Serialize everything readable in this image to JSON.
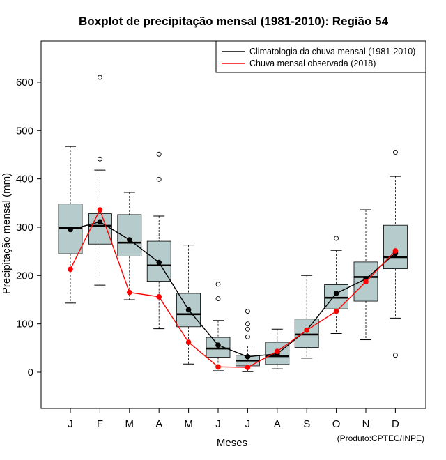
{
  "chart_data": {
    "type": "boxplot",
    "title": "Boxplot de precipitação mensal (1981-2010): Região 54",
    "xlabel": "Meses",
    "ylabel": "Precipitação mensal (mm)",
    "ylim": [
      -75,
      685
    ],
    "yticks": [
      0,
      100,
      200,
      300,
      400,
      500,
      600
    ],
    "categories": [
      "J",
      "F",
      "M",
      "A",
      "M",
      "J",
      "J",
      "A",
      "S",
      "O",
      "N",
      "D"
    ],
    "boxes": [
      {
        "month": "J",
        "whisker_low": 143,
        "q1": 245,
        "median": 298,
        "q3": 348,
        "whisker_high": 467,
        "outliers": []
      },
      {
        "month": "F",
        "whisker_low": 180,
        "q1": 265,
        "median": 303,
        "q3": 328,
        "whisker_high": 418,
        "outliers": [
          441,
          610
        ]
      },
      {
        "month": "M",
        "whisker_low": 150,
        "q1": 240,
        "median": 268,
        "q3": 326,
        "whisker_high": 372,
        "outliers": []
      },
      {
        "month": "A",
        "whisker_low": 90,
        "q1": 188,
        "median": 221,
        "q3": 271,
        "whisker_high": 323,
        "outliers": [
          399,
          451
        ]
      },
      {
        "month": "M",
        "whisker_low": 17,
        "q1": 94,
        "median": 120,
        "q3": 163,
        "whisker_high": 263,
        "outliers": []
      },
      {
        "month": "J",
        "whisker_low": 3,
        "q1": 31,
        "median": 49,
        "q3": 72,
        "whisker_high": 107,
        "outliers": [
          152,
          182
        ]
      },
      {
        "month": "J",
        "whisker_low": 1,
        "q1": 13,
        "median": 24,
        "q3": 35,
        "whisker_high": 54,
        "outliers": [
          73,
          89,
          100,
          126
        ]
      },
      {
        "month": "A",
        "whisker_low": 7,
        "q1": 16,
        "median": 33,
        "q3": 62,
        "whisker_high": 89,
        "outliers": []
      },
      {
        "month": "S",
        "whisker_low": 29,
        "q1": 51,
        "median": 78,
        "q3": 110,
        "whisker_high": 200,
        "outliers": []
      },
      {
        "month": "O",
        "whisker_low": 80,
        "q1": 131,
        "median": 154,
        "q3": 181,
        "whisker_high": 252,
        "outliers": [
          277
        ]
      },
      {
        "month": "N",
        "whisker_low": 67,
        "q1": 147,
        "median": 197,
        "q3": 228,
        "whisker_high": 336,
        "outliers": []
      },
      {
        "month": "D",
        "whisker_low": 112,
        "q1": 214,
        "median": 238,
        "q3": 304,
        "whisker_high": 405,
        "outliers": [
          35,
          455
        ]
      }
    ],
    "series": [
      {
        "name": "Climatologia da chuva mensal (1981-2010)",
        "color": "#000000",
        "values": [
          295,
          311,
          274,
          227,
          129,
          56,
          32,
          38,
          87,
          163,
          193,
          246
        ]
      },
      {
        "name": "Chuva mensal observada (2018)",
        "color": "#ff0000",
        "values": [
          213,
          336,
          165,
          156,
          62,
          11,
          10,
          43,
          87,
          126,
          187,
          251
        ]
      }
    ],
    "legend_position": "top-right",
    "box_fill": "#b6cccc",
    "credit": "(Produto:CPTEC/INPE)"
  }
}
